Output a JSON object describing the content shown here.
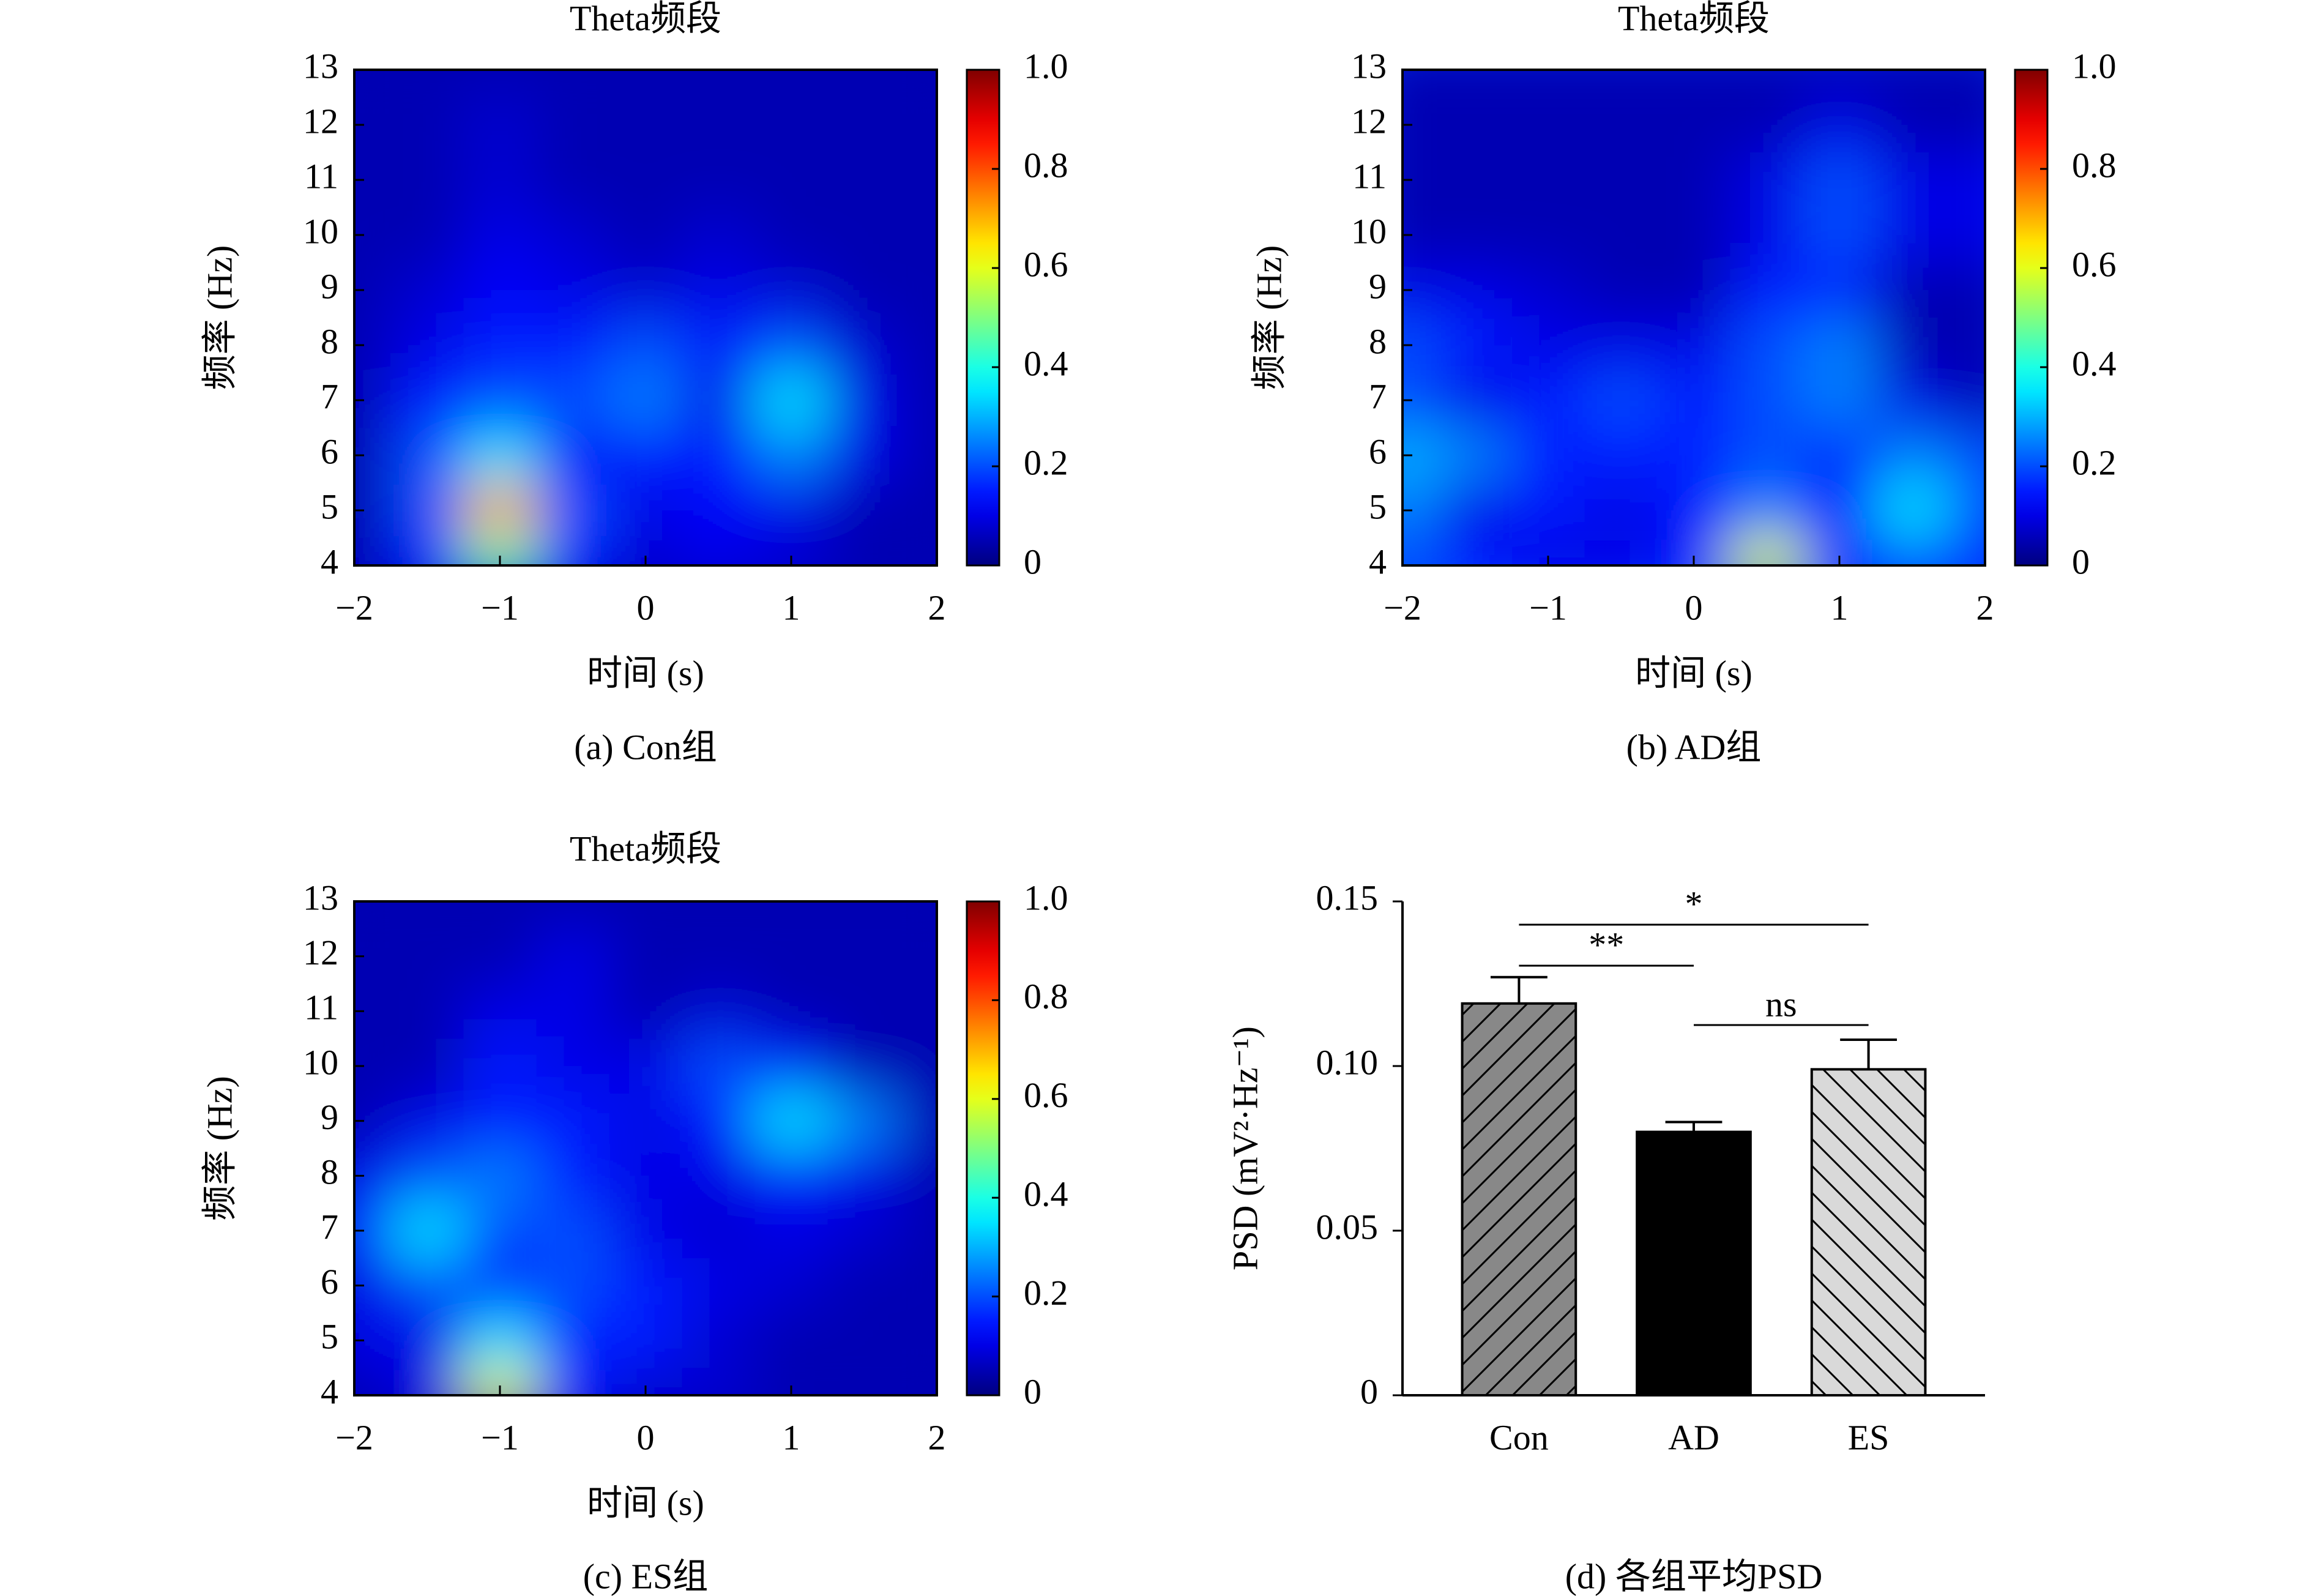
{
  "chart_data": [
    {
      "type": "heatmap",
      "title": "Theta频段",
      "xlabel": "时间 (s)",
      "ylabel": "频率 (Hz)",
      "caption": "(a) Con组",
      "colormap": "jet",
      "xlim": [
        -2,
        2
      ],
      "ylim": [
        4,
        13
      ],
      "clim": [
        0,
        1
      ],
      "xticks": [
        {
          "value": -2,
          "label": "−2"
        },
        {
          "value": -1,
          "label": "−1"
        },
        0,
        1,
        2
      ],
      "yticks": [
        4,
        5,
        6,
        7,
        8,
        9,
        10,
        11,
        12,
        13
      ],
      "cticks": [
        0,
        0.2,
        0.4,
        0.6,
        0.8,
        {
          "value": 1,
          "label": "1.0"
        }
      ],
      "x": [
        -2,
        -1.5,
        -1,
        -0.5,
        0,
        0.5,
        1,
        1.5,
        2
      ],
      "y": [
        4,
        5,
        6,
        7,
        8,
        9,
        10,
        11,
        12,
        13
      ],
      "z": [
        [
          0.05,
          0.15,
          0.45,
          0.15,
          0.08,
          0.1,
          0.08,
          0.05,
          0.05
        ],
        [
          0.05,
          0.2,
          0.7,
          0.2,
          0.1,
          0.12,
          0.1,
          0.05,
          0.05
        ],
        [
          0.05,
          0.2,
          0.35,
          0.12,
          0.15,
          0.15,
          0.25,
          0.1,
          0.05
        ],
        [
          0.05,
          0.15,
          0.2,
          0.2,
          0.25,
          0.1,
          0.35,
          0.1,
          0.05
        ],
        [
          0.05,
          0.1,
          0.15,
          0.15,
          0.2,
          0.15,
          0.2,
          0.08,
          0.05
        ],
        [
          0.05,
          0.08,
          0.12,
          0.1,
          0.08,
          0.1,
          0.08,
          0.05,
          0.05
        ],
        [
          0.05,
          0.05,
          0.1,
          0.08,
          0.05,
          0.08,
          0.05,
          0.05,
          0.05
        ],
        [
          0.05,
          0.05,
          0.08,
          0.05,
          0.05,
          0.05,
          0.05,
          0.05,
          0.05
        ],
        [
          0.05,
          0.05,
          0.08,
          0.05,
          0.05,
          0.05,
          0.05,
          0.05,
          0.05
        ],
        [
          0.05,
          0.05,
          0.05,
          0.05,
          0.05,
          0.05,
          0.05,
          0.05,
          0.05
        ]
      ]
    },
    {
      "type": "heatmap",
      "title": "Theta频段",
      "xlabel": "时间 (s)",
      "ylabel": "频率 (Hz)",
      "caption": "(b) AD组",
      "colormap": "jet",
      "xlim": [
        -2,
        2
      ],
      "ylim": [
        4,
        13
      ],
      "clim": [
        0,
        1
      ],
      "xticks": [
        {
          "value": -2,
          "label": "−2"
        },
        {
          "value": -1,
          "label": "−1"
        },
        0,
        1,
        2
      ],
      "yticks": [
        4,
        5,
        6,
        7,
        8,
        9,
        10,
        11,
        12,
        13
      ],
      "cticks": [
        0,
        0.2,
        0.4,
        0.6,
        0.8,
        {
          "value": 1,
          "label": "1.0"
        }
      ],
      "x": [
        -2,
        -1.5,
        -1,
        -0.5,
        0,
        0.5,
        1,
        1.5,
        2
      ],
      "y": [
        4,
        5,
        6,
        7,
        8,
        9,
        10,
        11,
        12,
        13
      ],
      "z": [
        [
          0.2,
          0.15,
          0.1,
          0.1,
          0.15,
          0.6,
          0.15,
          0.2,
          0.15
        ],
        [
          0.25,
          0.1,
          0.15,
          0.1,
          0.15,
          0.25,
          0.15,
          0.35,
          0.2
        ],
        [
          0.3,
          0.25,
          0.15,
          0.15,
          0.15,
          0.2,
          0.15,
          0.25,
          0.2
        ],
        [
          0.2,
          0.1,
          0.15,
          0.2,
          0.15,
          0.2,
          0.25,
          0.1,
          0.05
        ],
        [
          0.2,
          0.15,
          0.1,
          0.1,
          0.1,
          0.2,
          0.25,
          0.05,
          0.05
        ],
        [
          0.1,
          0.1,
          0.08,
          0.05,
          0.05,
          0.15,
          0.15,
          0.05,
          0.05
        ],
        [
          0.05,
          0.05,
          0.05,
          0.05,
          0.05,
          0.1,
          0.2,
          0.1,
          0.1
        ],
        [
          0.05,
          0.05,
          0.05,
          0.05,
          0.05,
          0.1,
          0.2,
          0.1,
          0.1
        ],
        [
          0.05,
          0.05,
          0.05,
          0.05,
          0.05,
          0.05,
          0.1,
          0.05,
          0.05
        ],
        [
          0.05,
          0.05,
          0.05,
          0.05,
          0.05,
          0.05,
          0.05,
          0.05,
          0.05
        ]
      ]
    },
    {
      "type": "heatmap",
      "title": "Theta频段",
      "xlabel": "时间 (s)",
      "ylabel": "频率 (Hz)",
      "caption": "(c) ES组",
      "colormap": "jet",
      "xlim": [
        -2,
        2
      ],
      "ylim": [
        4,
        13
      ],
      "clim": [
        0,
        1
      ],
      "xticks": [
        {
          "value": -2,
          "label": "−2"
        },
        {
          "value": -1,
          "label": "−1"
        },
        0,
        1,
        2
      ],
      "yticks": [
        4,
        5,
        6,
        7,
        8,
        9,
        10,
        11,
        12,
        13
      ],
      "cticks": [
        0,
        0.2,
        0.4,
        0.6,
        0.8,
        {
          "value": 1,
          "label": "1.0"
        }
      ],
      "x": [
        -2,
        -1.5,
        -1,
        -0.5,
        0,
        0.5,
        1,
        1.5,
        2
      ],
      "y": [
        4,
        5,
        6,
        7,
        8,
        9,
        10,
        11,
        12,
        13
      ],
      "z": [
        [
          0.05,
          0.1,
          0.6,
          0.15,
          0.08,
          0.08,
          0.05,
          0.05,
          0.05
        ],
        [
          0.1,
          0.1,
          0.35,
          0.15,
          0.15,
          0.08,
          0.05,
          0.05,
          0.05
        ],
        [
          0.1,
          0.2,
          0.15,
          0.2,
          0.15,
          0.1,
          0.08,
          0.05,
          0.05
        ],
        [
          0.15,
          0.35,
          0.2,
          0.2,
          0.1,
          0.08,
          0.1,
          0.08,
          0.05
        ],
        [
          0.1,
          0.2,
          0.25,
          0.15,
          0.1,
          0.1,
          0.15,
          0.1,
          0.05
        ],
        [
          0.05,
          0.1,
          0.15,
          0.15,
          0.1,
          0.15,
          0.35,
          0.25,
          0.05
        ],
        [
          0.05,
          0.05,
          0.15,
          0.1,
          0.1,
          0.2,
          0.15,
          0.05,
          0.05
        ],
        [
          0.05,
          0.05,
          0.1,
          0.1,
          0.05,
          0.08,
          0.05,
          0.05,
          0.05
        ],
        [
          0.05,
          0.05,
          0.05,
          0.1,
          0.05,
          0.05,
          0.05,
          0.05,
          0.05
        ],
        [
          0.05,
          0.05,
          0.05,
          0.05,
          0.05,
          0.05,
          0.05,
          0.05,
          0.05
        ]
      ]
    },
    {
      "type": "bar",
      "ylabel": "PSD (mV²·Hz⁻¹)",
      "caption": "(d) 各组平均PSD",
      "categories": [
        "Con",
        "AD",
        "ES"
      ],
      "values": [
        0.119,
        0.08,
        0.099
      ],
      "errors": [
        0.008,
        0.003,
        0.009
      ],
      "colors": [
        "#888888",
        "#000000",
        "#d9d9d9"
      ],
      "hatch": [
        "/",
        "none",
        "\\"
      ],
      "ylim": [
        0,
        0.15
      ],
      "yticks": [
        0,
        0.05,
        {
          "value": 0.1,
          "label": "0.10"
        },
        0.15
      ],
      "annotations": [
        "*",
        "**",
        "ns"
      ]
    }
  ]
}
